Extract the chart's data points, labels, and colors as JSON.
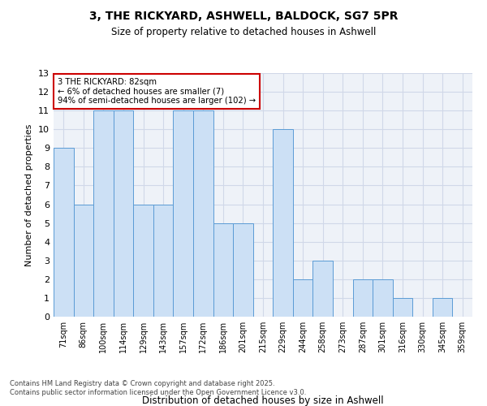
{
  "title1": "3, THE RICKYARD, ASHWELL, BALDOCK, SG7 5PR",
  "title2": "Size of property relative to detached houses in Ashwell",
  "xlabel": "Distribution of detached houses by size in Ashwell",
  "ylabel": "Number of detached properties",
  "categories": [
    "71sqm",
    "86sqm",
    "100sqm",
    "114sqm",
    "129sqm",
    "143sqm",
    "157sqm",
    "172sqm",
    "186sqm",
    "201sqm",
    "215sqm",
    "229sqm",
    "244sqm",
    "258sqm",
    "273sqm",
    "287sqm",
    "301sqm",
    "316sqm",
    "330sqm",
    "345sqm",
    "359sqm"
  ],
  "values": [
    9,
    6,
    11,
    11,
    6,
    6,
    11,
    11,
    5,
    5,
    0,
    10,
    2,
    3,
    0,
    2,
    2,
    1,
    0,
    1,
    0
  ],
  "bar_color": "#cce0f5",
  "bar_edge_color": "#5b9bd5",
  "annotation_text": "3 THE RICKYARD: 82sqm\n← 6% of detached houses are smaller (7)\n94% of semi-detached houses are larger (102) →",
  "annotation_box_color": "#ffffff",
  "annotation_box_edge": "#cc0000",
  "footer1": "Contains HM Land Registry data © Crown copyright and database right 2025.",
  "footer2": "Contains public sector information licensed under the Open Government Licence v3.0.",
  "ylim": [
    0,
    13
  ],
  "yticks": [
    0,
    1,
    2,
    3,
    4,
    5,
    6,
    7,
    8,
    9,
    10,
    11,
    12,
    13
  ],
  "grid_color": "#d0d8e8",
  "background_color": "#eef2f8"
}
